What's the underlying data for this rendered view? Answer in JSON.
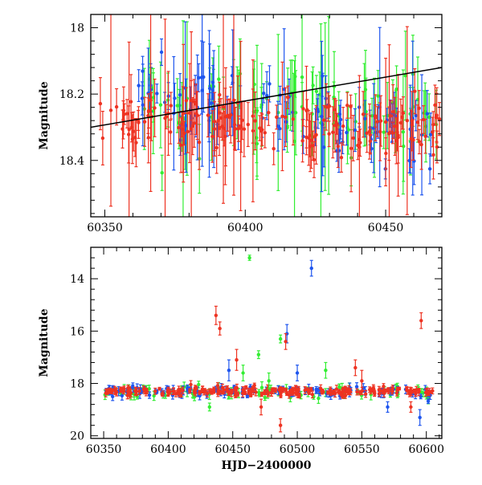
{
  "chart_data": [
    {
      "type": "scatter",
      "panel": "top",
      "title": "",
      "xlabel": "",
      "ylabel": "Magnitude",
      "xlim": [
        60345,
        60470
      ],
      "ylim": [
        18.57,
        17.96
      ],
      "y_inverted": true,
      "grid": false,
      "xticks": [
        60350,
        60400,
        60450
      ],
      "yticks": [
        18.0,
        18.2,
        18.4
      ],
      "ytick_labels": [
        "18",
        "18.2",
        "18.4"
      ],
      "trend_line": {
        "x": [
          60345,
          60470
        ],
        "y": [
          18.3,
          18.12
        ],
        "color": "#000000"
      },
      "series": [
        {
          "name": "green band",
          "color": "#33ee33",
          "x_range": [
            60363,
            60470
          ],
          "n_points": 85,
          "baseline_start": 18.22,
          "baseline_end": 18.28,
          "scatter": 0.06,
          "error_typical": 0.09,
          "error_max": 0.3,
          "seed": 11
        },
        {
          "name": "blue band",
          "color": "#1e55ee",
          "x_range": [
            60362,
            60470
          ],
          "n_points": 95,
          "baseline_start": 18.2,
          "baseline_end": 18.32,
          "scatter": 0.05,
          "error_typical": 0.05,
          "error_max": 0.25,
          "seed": 23
        },
        {
          "name": "red band",
          "color": "#ee3322",
          "x_range": [
            60347,
            60470
          ],
          "n_points": 170,
          "baseline_start": 18.28,
          "baseline_end": 18.3,
          "scatter": 0.04,
          "error_typical": 0.06,
          "error_max": 0.3,
          "seed": 37
        }
      ]
    },
    {
      "type": "scatter",
      "panel": "bottom",
      "title": "",
      "xlabel": "HJD−2400000",
      "ylabel": "Magnitude",
      "xlim": [
        60340,
        60612
      ],
      "ylim": [
        20.1,
        12.8
      ],
      "y_inverted": true,
      "grid": false,
      "xticks": [
        60350,
        60400,
        60450,
        60500,
        60550,
        60600
      ],
      "yticks": [
        14,
        16,
        18,
        20
      ],
      "ytick_labels": [
        "14",
        "16",
        "18",
        "20"
      ],
      "series": [
        {
          "name": "green band",
          "color": "#33ee33",
          "x_range": [
            60350,
            60605
          ],
          "n_points": 80,
          "baseline": 18.3,
          "scatter": 0.12,
          "error_typical": 0.15,
          "seed": 5
        },
        {
          "name": "blue band",
          "color": "#1e55ee",
          "x_range": [
            60350,
            60608
          ],
          "n_points": 110,
          "baseline": 18.3,
          "scatter": 0.1,
          "error_typical": 0.12,
          "seed": 7
        },
        {
          "name": "red band",
          "color": "#ee3322",
          "x_range": [
            60348,
            60606
          ],
          "n_points": 220,
          "baseline": 18.3,
          "scatter": 0.08,
          "error_typical": 0.1,
          "seed": 9
        }
      ],
      "outliers": [
        {
          "band": "green band",
          "x": 60463,
          "y": 13.2,
          "err": 0.1
        },
        {
          "band": "green band",
          "x": 60487,
          "y": 16.3,
          "err": 0.15
        },
        {
          "band": "green band",
          "x": 60470,
          "y": 16.9,
          "err": 0.15
        },
        {
          "band": "green band",
          "x": 60458,
          "y": 17.6,
          "err": 0.3
        },
        {
          "band": "green band",
          "x": 60478,
          "y": 17.9,
          "err": 0.3
        },
        {
          "band": "green band",
          "x": 60432,
          "y": 18.9,
          "err": 0.15
        },
        {
          "band": "green band",
          "x": 60522,
          "y": 17.5,
          "err": 0.3
        },
        {
          "band": "blue band",
          "x": 60511,
          "y": 13.6,
          "err": 0.3
        },
        {
          "band": "blue band",
          "x": 60492,
          "y": 16.1,
          "err": 0.35
        },
        {
          "band": "blue band",
          "x": 60447,
          "y": 17.5,
          "err": 0.4
        },
        {
          "band": "blue band",
          "x": 60500,
          "y": 17.6,
          "err": 0.3
        },
        {
          "band": "blue band",
          "x": 60570,
          "y": 18.9,
          "err": 0.2
        },
        {
          "band": "blue band",
          "x": 60595,
          "y": 19.3,
          "err": 0.3
        },
        {
          "band": "red band",
          "x": 60437,
          "y": 15.4,
          "err": 0.35
        },
        {
          "band": "red band",
          "x": 60440,
          "y": 15.9,
          "err": 0.25
        },
        {
          "band": "red band",
          "x": 60596,
          "y": 15.6,
          "err": 0.3
        },
        {
          "band": "red band",
          "x": 60491,
          "y": 16.4,
          "err": 0.3
        },
        {
          "band": "red band",
          "x": 60453,
          "y": 17.1,
          "err": 0.4
        },
        {
          "band": "red band",
          "x": 60545,
          "y": 17.4,
          "err": 0.3
        },
        {
          "band": "red band",
          "x": 60550,
          "y": 17.9,
          "err": 0.4
        },
        {
          "band": "red band",
          "x": 60487,
          "y": 19.6,
          "err": 0.25
        },
        {
          "band": "red band",
          "x": 60472,
          "y": 18.9,
          "err": 0.3
        },
        {
          "band": "red band",
          "x": 60588,
          "y": 18.9,
          "err": 0.2
        }
      ]
    }
  ]
}
